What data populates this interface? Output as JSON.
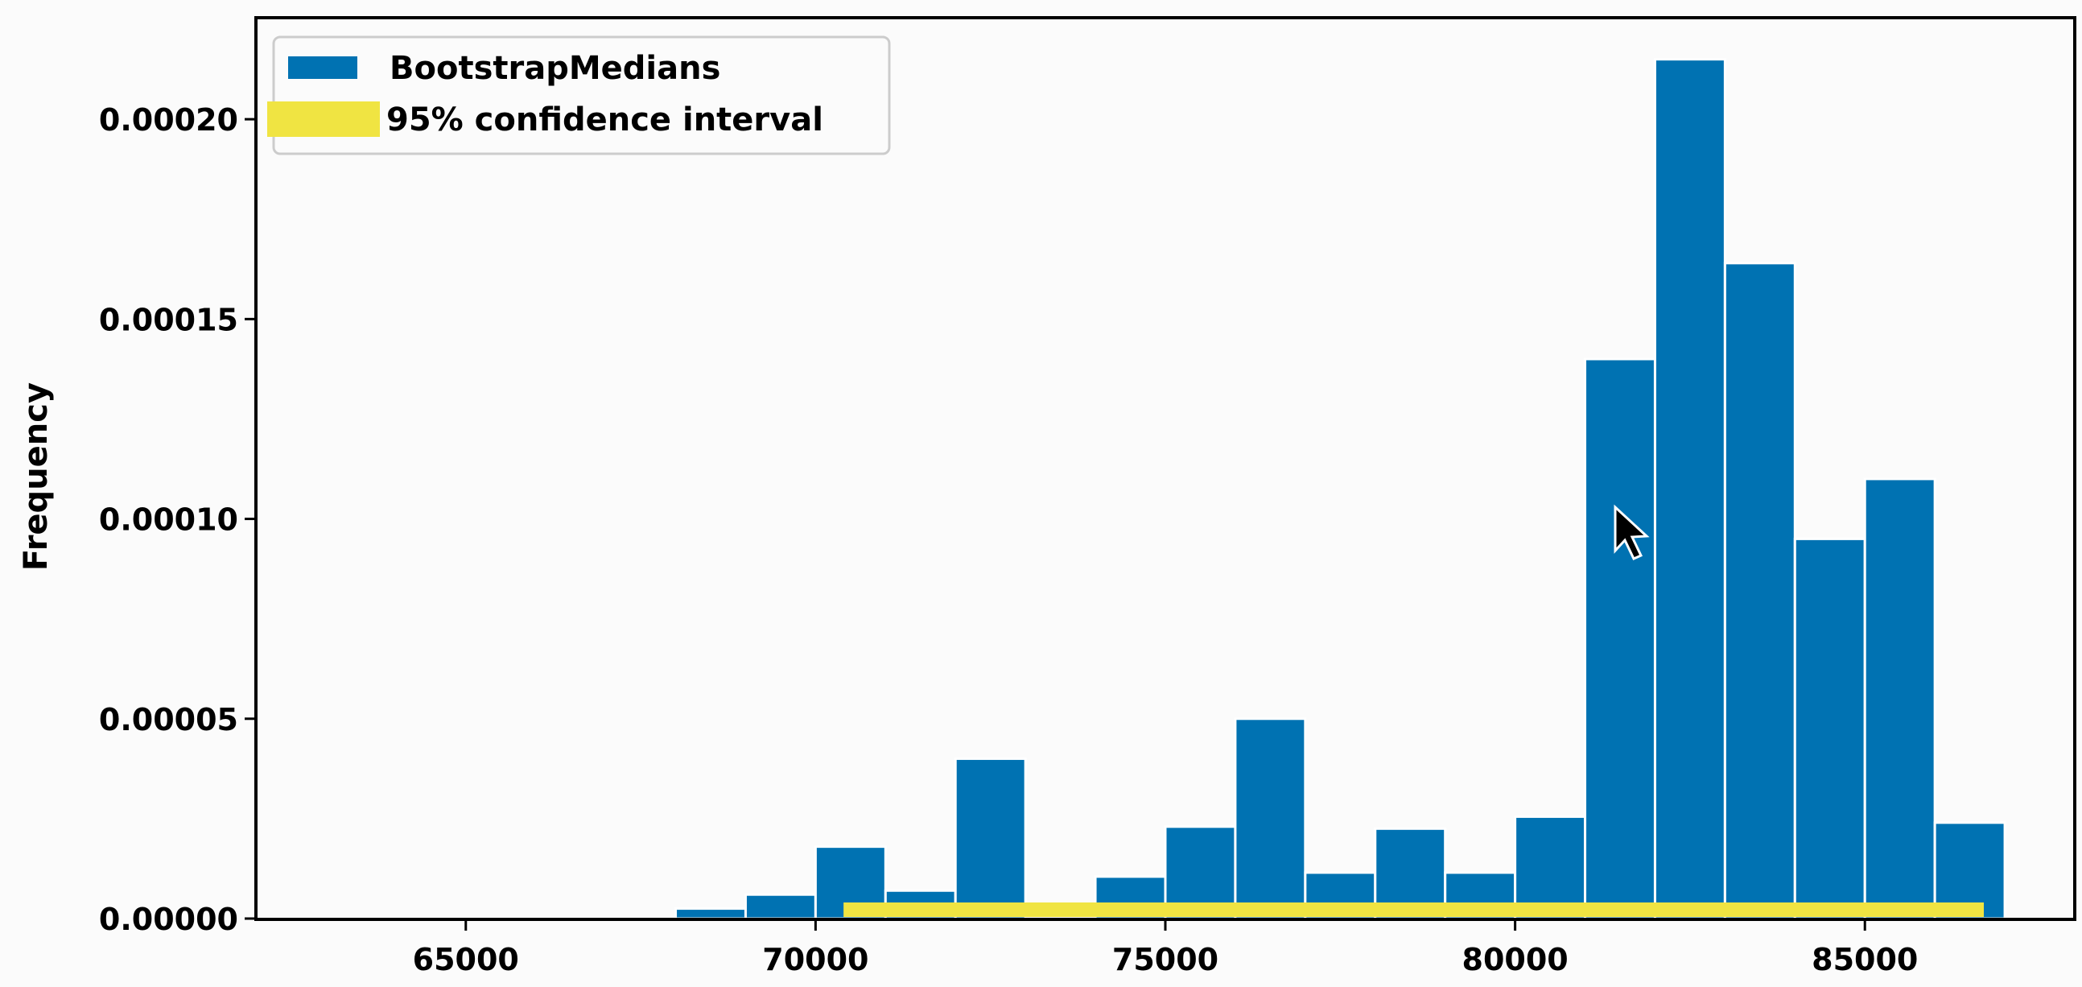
{
  "chart_data": {
    "type": "bar",
    "title": "",
    "xlabel": "",
    "ylabel": "Frequency",
    "xlim": [
      62000,
      88000
    ],
    "ylim": [
      0,
      0.000225
    ],
    "x_ticks": [
      65000,
      70000,
      75000,
      80000,
      85000
    ],
    "x_tick_labels": [
      "65000",
      "70000",
      "75000",
      "80000",
      "85000"
    ],
    "y_ticks": [
      0,
      5e-05,
      0.0001,
      0.00015,
      0.0002
    ],
    "y_tick_labels": [
      "0.00000",
      "0.00005",
      "0.00010",
      "0.00015",
      "0.00020"
    ],
    "grid": false,
    "legend_position": "top-left",
    "series": [
      {
        "name": "BootstrapMedians",
        "color": "#0072b2",
        "bin_width": 1000,
        "bins": [
          {
            "x": 68000,
            "y": 2.5e-06
          },
          {
            "x": 69000,
            "y": 6e-06
          },
          {
            "x": 70000,
            "y": 1.8e-05
          },
          {
            "x": 71000,
            "y": 7e-06
          },
          {
            "x": 72000,
            "y": 4e-05
          },
          {
            "x": 73000,
            "y": 0
          },
          {
            "x": 74000,
            "y": 1.05e-05
          },
          {
            "x": 75000,
            "y": 2.3e-05
          },
          {
            "x": 76000,
            "y": 5e-05
          },
          {
            "x": 77000,
            "y": 1.15e-05
          },
          {
            "x": 78000,
            "y": 2.25e-05
          },
          {
            "x": 79000,
            "y": 1.15e-05
          },
          {
            "x": 80000,
            "y": 2.55e-05
          },
          {
            "x": 81000,
            "y": 0.00014
          },
          {
            "x": 82000,
            "y": 0.000215
          },
          {
            "x": 83000,
            "y": 0.000164
          },
          {
            "x": 84000,
            "y": 9.5e-05
          },
          {
            "x": 85000,
            "y": 0.00011
          },
          {
            "x": 86000,
            "y": 2.4e-05
          }
        ]
      },
      {
        "name": "95% confidence interval",
        "color": "#f0e442",
        "interval": [
          70400,
          86700
        ]
      }
    ]
  }
}
